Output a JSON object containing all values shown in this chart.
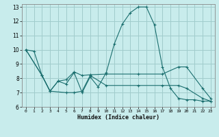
{
  "xlabel": "Humidex (Indice chaleur)",
  "bg_color": "#c8ecec",
  "grid_color": "#a0cccc",
  "line_color": "#1a6e6e",
  "xlim": [
    -0.5,
    23.5
  ],
  "ylim": [
    6,
    13.2
  ],
  "xticks": [
    0,
    1,
    2,
    3,
    4,
    5,
    6,
    7,
    8,
    9,
    10,
    11,
    12,
    13,
    14,
    15,
    16,
    17,
    18,
    19,
    20,
    21,
    22,
    23
  ],
  "yticks": [
    6,
    7,
    8,
    9,
    10,
    11,
    12,
    13
  ],
  "line1_x": [
    0,
    1,
    2,
    3,
    4,
    5,
    6,
    7,
    8,
    9,
    10,
    11,
    12,
    13,
    14,
    15,
    16,
    17,
    18,
    19,
    20,
    21,
    22,
    23
  ],
  "line1_y": [
    10.0,
    9.9,
    8.2,
    7.1,
    7.8,
    7.6,
    8.4,
    7.0,
    8.1,
    7.4,
    8.4,
    10.4,
    11.8,
    12.6,
    13.0,
    13.0,
    11.75,
    8.8,
    7.3,
    6.6,
    6.5,
    6.5,
    6.4,
    6.4
  ],
  "line2_x": [
    0,
    2,
    3,
    4,
    5,
    6,
    7,
    8,
    10,
    14,
    17,
    19,
    20,
    22,
    23
  ],
  "line2_y": [
    10.0,
    8.2,
    7.1,
    7.8,
    7.9,
    8.45,
    8.2,
    8.25,
    8.3,
    8.3,
    8.3,
    8.8,
    8.8,
    7.3,
    6.6
  ],
  "line3_x": [
    0,
    2,
    3,
    5,
    6,
    7,
    8,
    10,
    14,
    17,
    19,
    20,
    22,
    23
  ],
  "line3_y": [
    10.0,
    8.2,
    7.1,
    7.0,
    7.0,
    7.1,
    8.2,
    7.5,
    7.5,
    7.5,
    7.5,
    7.3,
    6.6,
    6.4
  ]
}
